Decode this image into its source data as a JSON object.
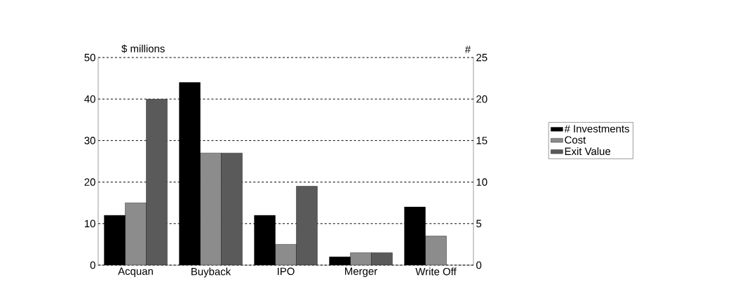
{
  "chart_data": {
    "type": "bar",
    "categories": [
      "Acquan",
      "Buyback",
      "IPO",
      "Merger",
      "Write Off"
    ],
    "ylabel": "$ millions",
    "y2label": "#",
    "series": [
      {
        "name": "# Investments",
        "color": "#000000",
        "axis": "y2",
        "values": [
          6,
          22,
          6,
          1,
          7
        ]
      },
      {
        "name": "Cost",
        "color": "#8c8c8c",
        "values": [
          15,
          27,
          5,
          3,
          7
        ]
      },
      {
        "name": "Exit Value",
        "color": "#5a5a5a",
        "values": [
          40,
          27,
          19,
          3,
          null
        ]
      }
    ],
    "ylim": [
      0,
      50
    ],
    "yticks": [
      0,
      10,
      20,
      30,
      40,
      50
    ],
    "y2lim": [
      0,
      25
    ],
    "y2ticks": [
      0,
      5,
      10,
      15,
      20,
      25
    ],
    "grid": "y",
    "legend": "right"
  }
}
